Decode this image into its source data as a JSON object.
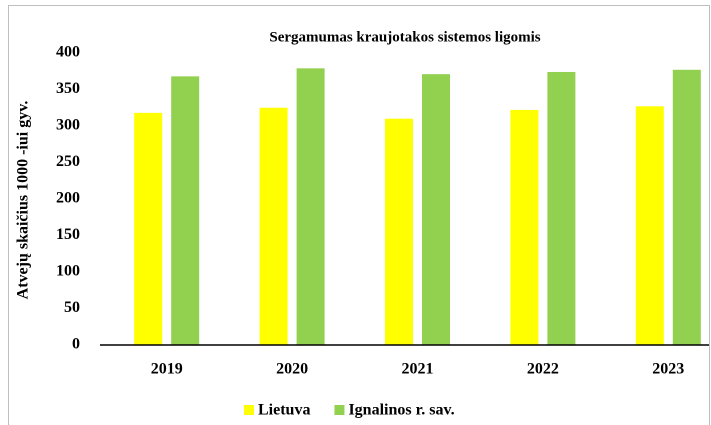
{
  "chart_data": {
    "type": "bar",
    "title": "Sergamumas kraujotakos sistemos ligomis",
    "y_label": "Atvejų skaičius 1000 -iui gyv.",
    "categories": [
      "2019",
      "2020",
      "2021",
      "2022",
      "2023"
    ],
    "series": [
      {
        "name": "Lietuva",
        "color": "#ffff00",
        "values": [
          318,
          325,
          310,
          322,
          327
        ]
      },
      {
        "name": "Ignalinos r. sav.",
        "color": "#92d050",
        "values": [
          368,
          379,
          371,
          374,
          377
        ]
      }
    ],
    "ylim": [
      0,
      400
    ],
    "yticks": [
      0,
      50,
      100,
      150,
      200,
      250,
      300,
      350,
      400
    ],
    "grid": false,
    "legend": "bottom"
  }
}
